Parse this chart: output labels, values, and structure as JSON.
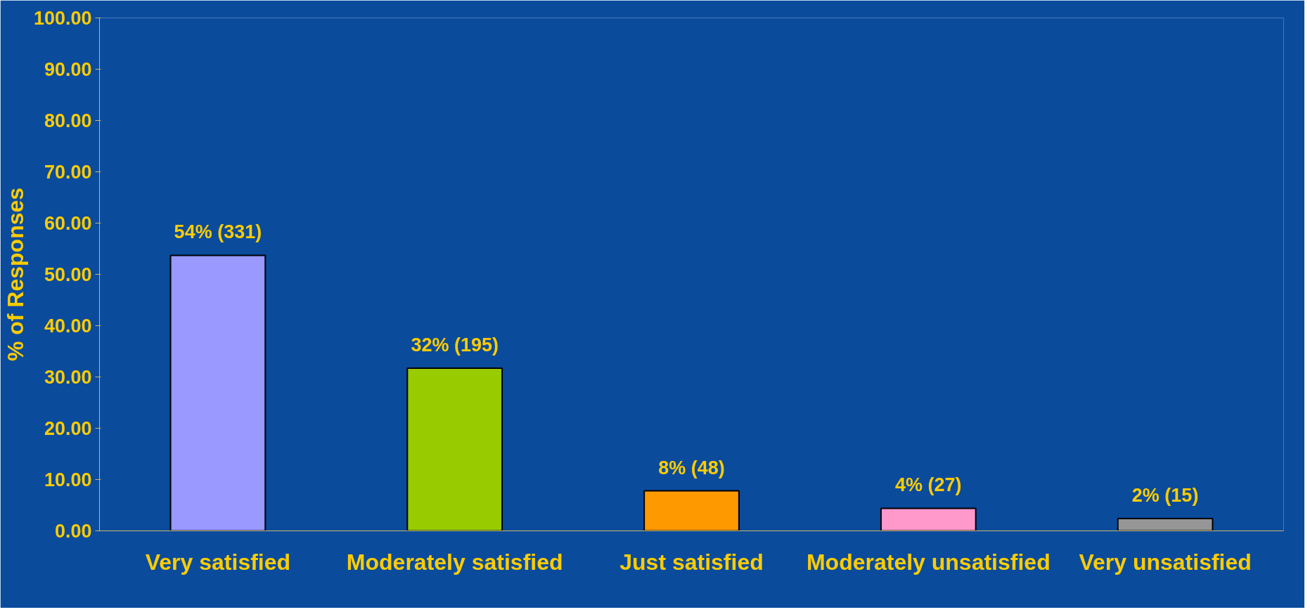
{
  "chart_data": {
    "type": "bar",
    "ylabel": "% of Responses",
    "categories": [
      "Very satisfied",
      "Moderately satisfied",
      "Just satisfied",
      "Moderately unsatisfied",
      "Very unsatisfied"
    ],
    "values": [
      53.7,
      31.7,
      7.8,
      4.4,
      2.4
    ],
    "colors": [
      "#9999ff",
      "#99cc00",
      "#ff9900",
      "#ff99cc",
      "#969696"
    ],
    "value_labels": [
      "54% (331)",
      "32% (195)",
      "8% (48)",
      "4% (27)",
      "2% (15)"
    ],
    "ylim": [
      0,
      100
    ],
    "yticks": [
      {
        "value": 0,
        "label": "0.00"
      },
      {
        "value": 10,
        "label": "10.00"
      },
      {
        "value": 20,
        "label": "20.00"
      },
      {
        "value": 30,
        "label": "30.00"
      },
      {
        "value": 40,
        "label": "40.00"
      },
      {
        "value": 50,
        "label": "50.00"
      },
      {
        "value": 60,
        "label": "60.00"
      },
      {
        "value": 70,
        "label": "70.00"
      },
      {
        "value": 80,
        "label": "80.00"
      },
      {
        "value": 90,
        "label": "90.00"
      },
      {
        "value": 100,
        "label": "100.00"
      }
    ],
    "grid": false
  }
}
